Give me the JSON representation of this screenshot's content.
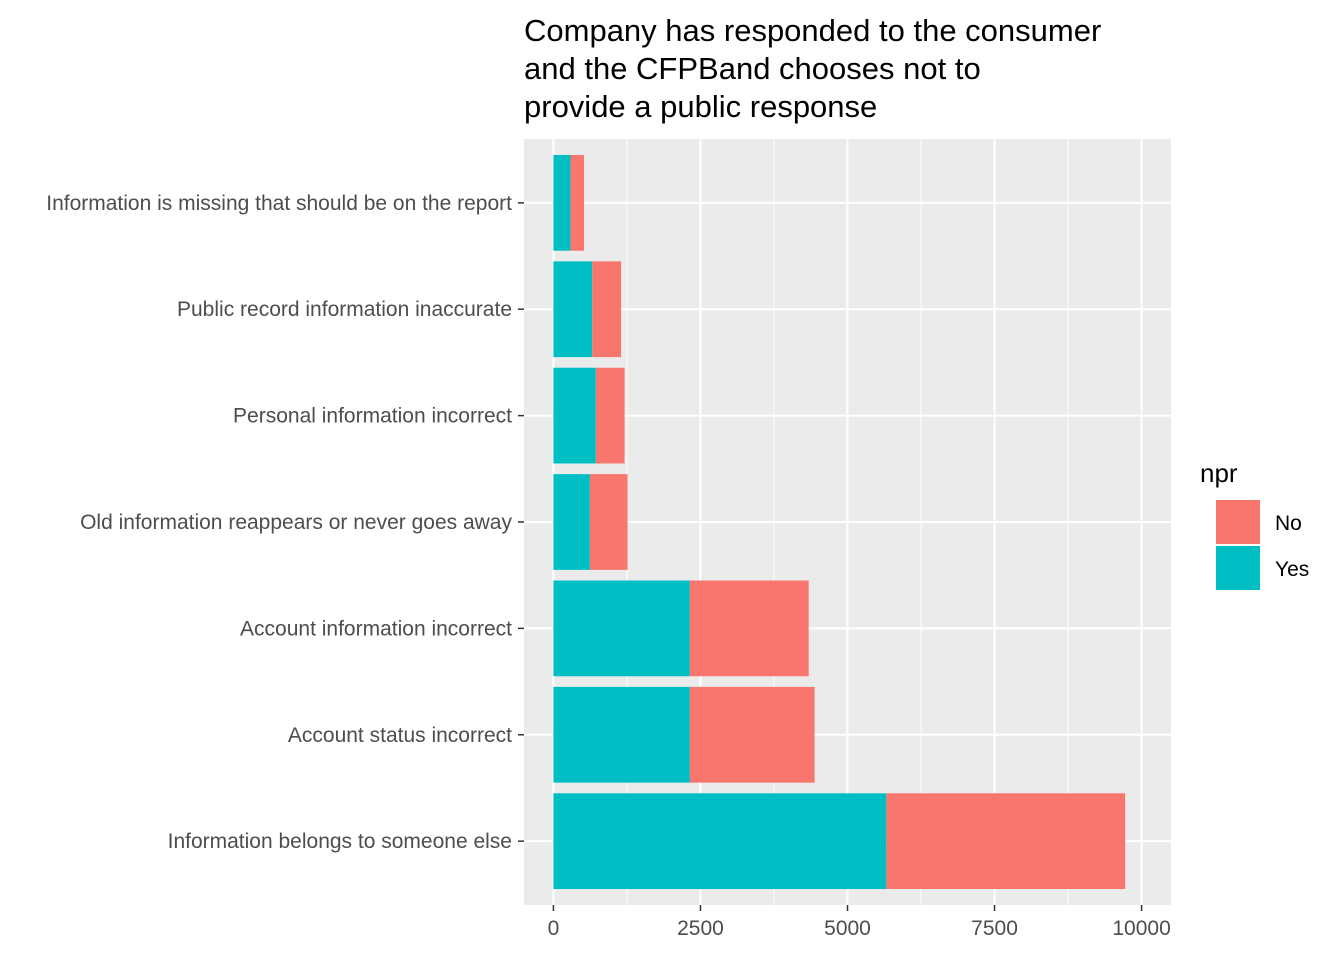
{
  "chart_data": {
    "type": "bar",
    "orientation": "horizontal",
    "stacked": true,
    "title_lines": [
      "Company has responded to the consumer",
      "and the CFPBand chooses not to",
      "provide a public response"
    ],
    "xlabel": "",
    "ylabel": "",
    "categories": [
      "Information is missing that should be on the report",
      "Public record information inaccurate",
      "Personal information incorrect",
      "Old information reappears or never goes away",
      "Account information incorrect",
      "Account status incorrect",
      "Information belongs to someone else"
    ],
    "series": [
      {
        "name": "Yes",
        "color": "#00BFC4",
        "values": [
          290,
          660,
          720,
          620,
          2320,
          2320,
          5660
        ]
      },
      {
        "name": "No",
        "color": "#F8766D",
        "values": [
          230,
          490,
          490,
          640,
          2020,
          2120,
          4060
        ]
      }
    ],
    "xlim": [
      -500,
      10500
    ],
    "x_ticks": [
      0,
      2500,
      5000,
      7500,
      10000
    ],
    "x_tick_labels": [
      "0",
      "2500",
      "5000",
      "7500",
      "10000"
    ],
    "grid": true,
    "panel_background": "#EBEBEB",
    "legend": {
      "title": "npr",
      "placement": "right",
      "entries": [
        {
          "label": "No",
          "color": "#F8766D"
        },
        {
          "label": "Yes",
          "color": "#00BFC4"
        }
      ]
    }
  }
}
